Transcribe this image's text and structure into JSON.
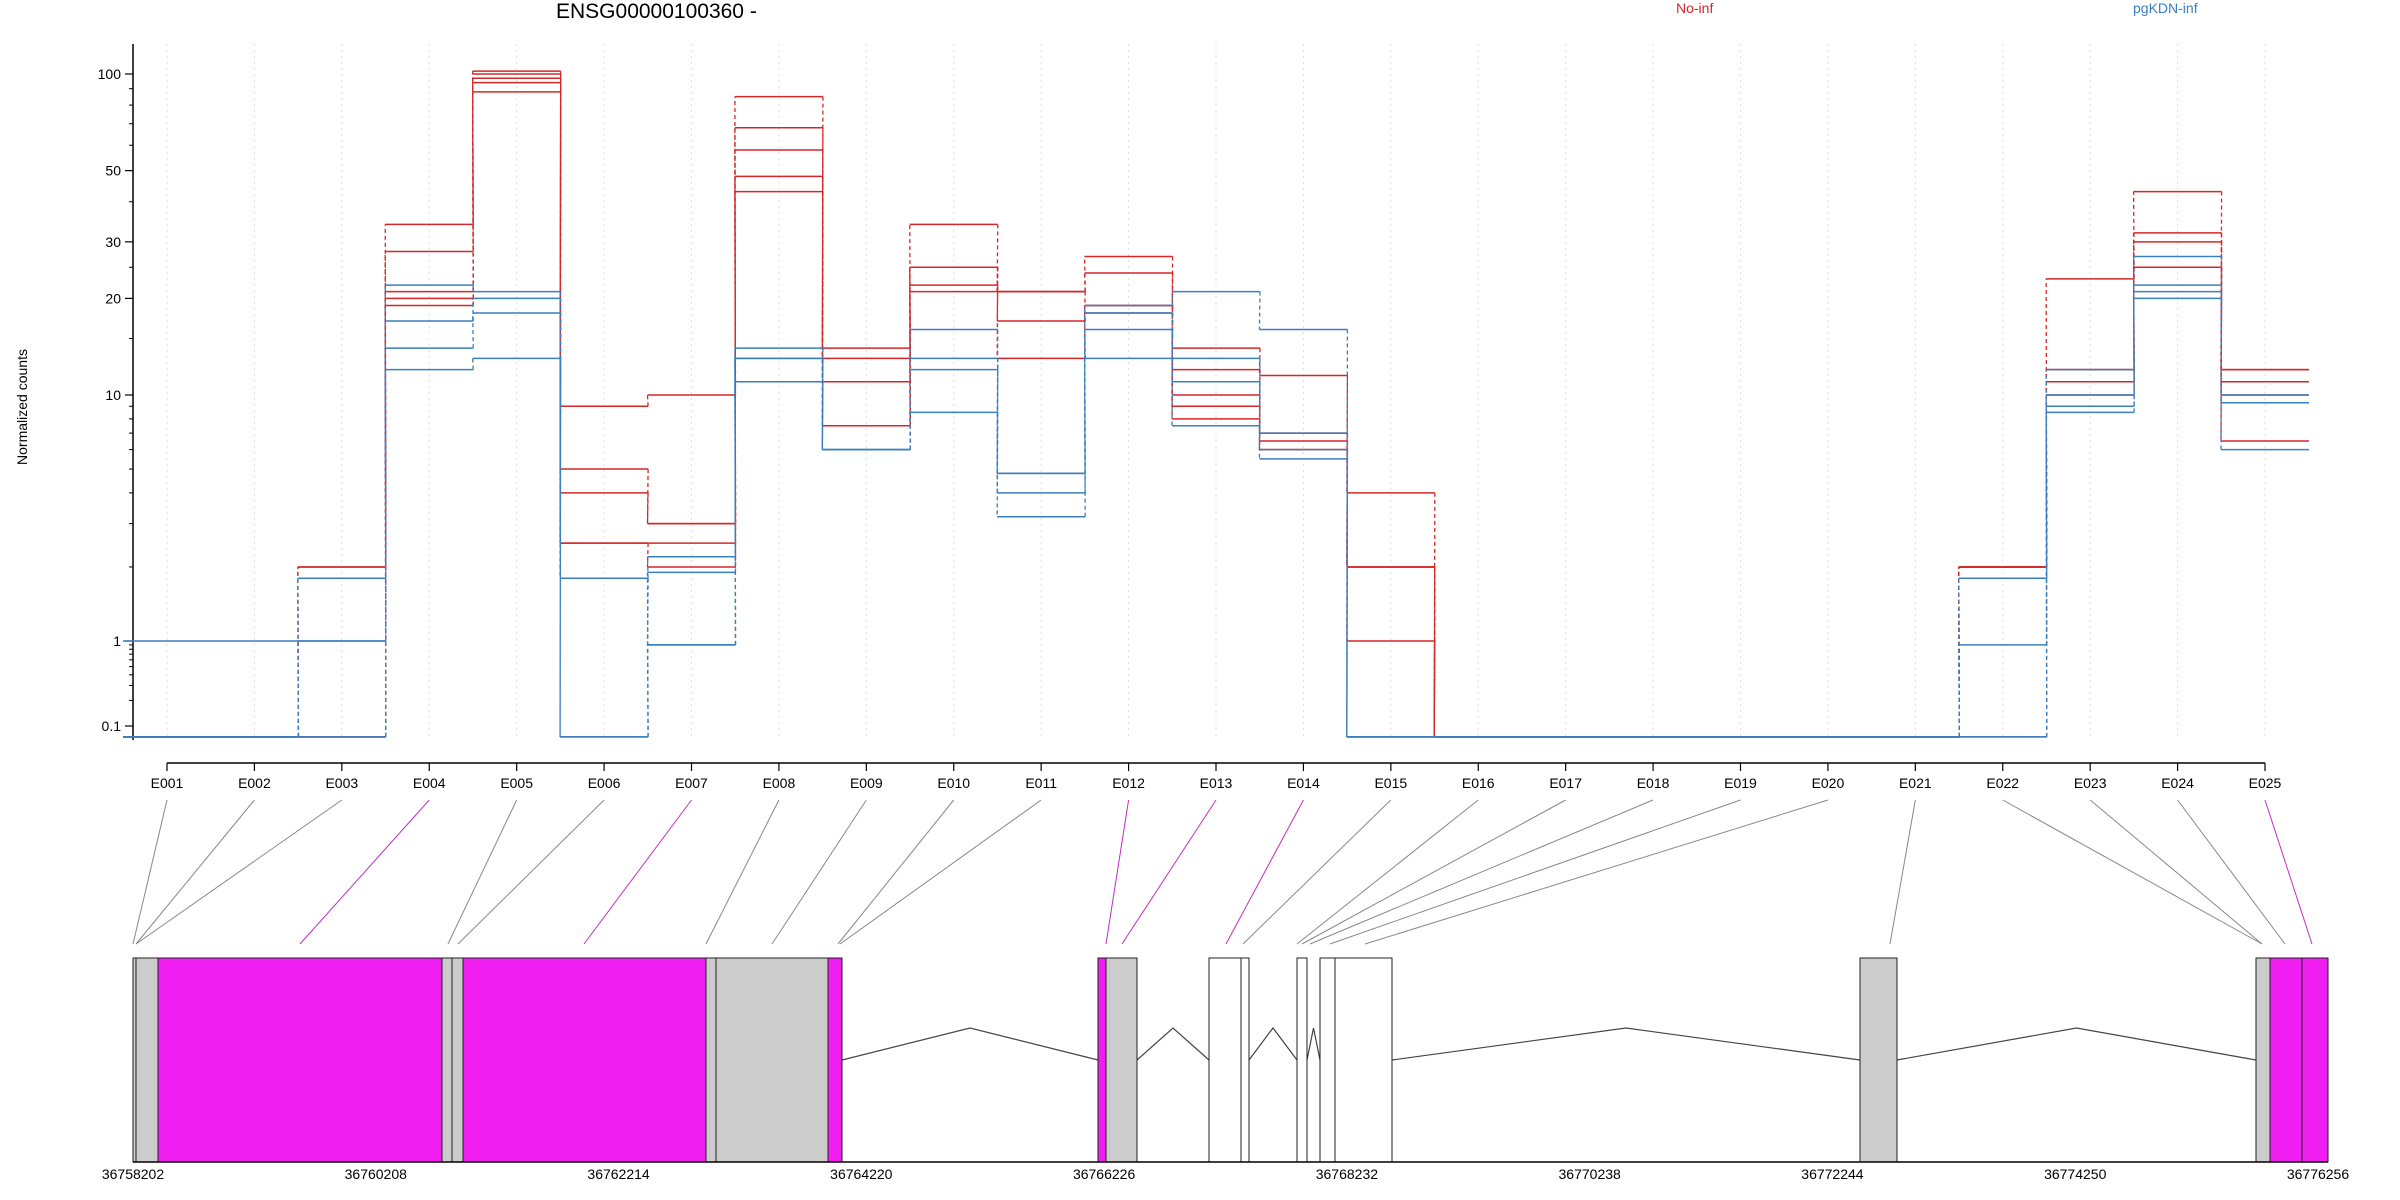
{
  "chart_data": {
    "type": "line",
    "title": "ENSG00000100360 -",
    "ylabel": "Normalized counts",
    "yscale": "log",
    "yticks": [
      0.1,
      1,
      10,
      20,
      30,
      50,
      100
    ],
    "ytick_labels": [
      "0.1",
      "1",
      "10",
      "20",
      "30",
      "50",
      "100"
    ],
    "ylim": [
      0.075,
      110
    ],
    "grid": "vertical dotted lines at exon centers",
    "legend_placement": "top",
    "exons": [
      "E001",
      "E002",
      "E003",
      "E004",
      "E005",
      "E006",
      "E007",
      "E008",
      "E009",
      "E010",
      "E011",
      "E012",
      "E013",
      "E014",
      "E015",
      "E016",
      "E017",
      "E018",
      "E019",
      "E020",
      "E021",
      "E022",
      "E023",
      "E024",
      "E025"
    ],
    "series_groups": [
      {
        "name": "No-inf",
        "color": "#d62728",
        "replicates": [
          [
            0.08,
            0.08,
            0.08,
            20,
            102,
            2.5,
            2.0,
            85,
            14,
            34,
            21,
            27,
            14,
            11.5,
            4.0,
            0.08,
            0.08,
            0.08,
            0.08,
            0.08,
            0.08,
            2.0,
            23,
            43,
            12
          ],
          [
            0.08,
            0.08,
            0.08,
            19,
            100,
            5.0,
            3.0,
            68,
            13,
            25,
            21,
            24,
            12,
            7.0,
            2.0,
            0.08,
            0.08,
            0.08,
            0.08,
            0.08,
            0.08,
            2.0,
            12,
            32,
            11
          ],
          [
            0.08,
            0.08,
            0.08,
            34,
            97,
            4.0,
            3.0,
            58,
            11,
            22,
            17,
            19,
            10,
            6.5,
            2.0,
            0.08,
            0.08,
            0.08,
            0.08,
            0.08,
            0.08,
            2.0,
            11,
            30,
            10
          ],
          [
            0.08,
            0.08,
            2.0,
            28,
            94,
            9.0,
            10,
            48,
            7.5,
            25,
            13,
            19,
            9.0,
            6.0,
            1.0,
            0.08,
            0.08,
            0.08,
            0.08,
            0.08,
            0.08,
            2.0,
            10,
            25,
            6.5
          ],
          [
            0.08,
            0.08,
            2.0,
            21,
            88,
            2.5,
            2.5,
            43,
            7.5,
            21,
            21,
            18,
            8.0,
            6.0,
            2.0,
            0.08,
            0.08,
            0.08,
            0.08,
            0.08,
            0.08,
            2.0,
            12,
            25,
            12
          ]
        ]
      },
      {
        "name": "pgKDN-inf",
        "color": "#3a7fbf",
        "replicates": [
          [
            1.0,
            1.0,
            1.0,
            22,
            21,
            1.8,
            0.9,
            14,
            6.0,
            16,
            4.8,
            19,
            21,
            16,
            0.08,
            0.08,
            0.08,
            0.08,
            0.08,
            0.08,
            0.08,
            0.9,
            12,
            21,
            9.3
          ],
          [
            0.08,
            0.08,
            1.8,
            17,
            20,
            1.8,
            2.2,
            13,
            6.0,
            13,
            4.8,
            18,
            13,
            7.0,
            0.08,
            0.08,
            0.08,
            0.08,
            0.08,
            0.08,
            0.08,
            1.8,
            10,
            22,
            9.3
          ],
          [
            0.08,
            0.08,
            1.0,
            14,
            18,
            0.08,
            1.9,
            13,
            6.0,
            12,
            4.0,
            16,
            11,
            6.0,
            0.08,
            0.08,
            0.08,
            0.08,
            0.08,
            0.08,
            0.08,
            0.08,
            9.0,
            27,
            10
          ],
          [
            0.08,
            0.08,
            0.08,
            12,
            13,
            0.08,
            0.9,
            11,
            6.0,
            8.5,
            3.2,
            13,
            7.5,
            5.5,
            0.08,
            0.08,
            0.08,
            0.08,
            0.08,
            0.08,
            0.08,
            0.08,
            8.5,
            20,
            6.0
          ]
        ]
      }
    ],
    "gene_model": {
      "coord_ticks": [
        "36758202",
        "36760208",
        "36762214",
        "36764220",
        "36766226",
        "36768232",
        "36770238",
        "36772244",
        "36774250",
        "36776256"
      ],
      "exon_colors": {
        "tested": "#cccccc",
        "significant": "#f01ef0",
        "untested": "#ffffff"
      }
    }
  }
}
